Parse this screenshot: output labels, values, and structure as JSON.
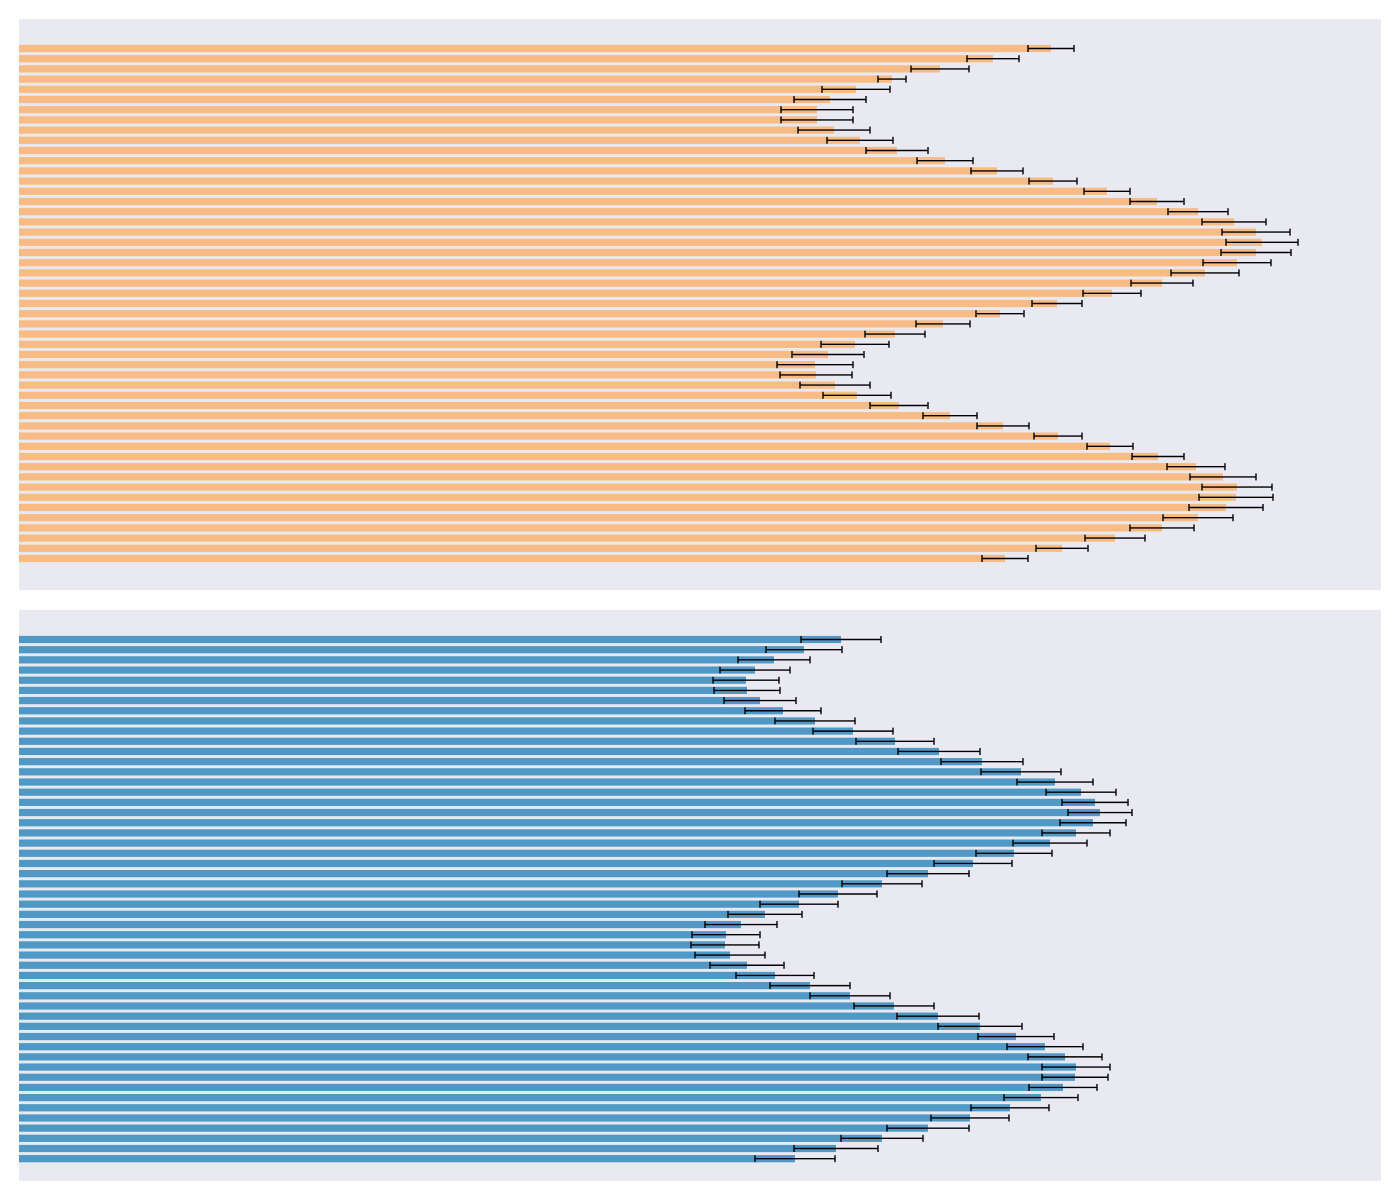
{
  "chart_data": [
    {
      "type": "bar",
      "orientation": "horizontal",
      "title": "",
      "xlabel": "",
      "ylabel": "",
      "axes_visible": false,
      "grid": false,
      "legend": "none",
      "background": "#e9e9f1",
      "bar_color": "#f7bb83",
      "xlim": [
        0,
        1400
      ],
      "values": [
        1051,
        993,
        940,
        892,
        856,
        830,
        817,
        817,
        834,
        860,
        897,
        945,
        997,
        1053,
        1107,
        1157,
        1198,
        1234,
        1256,
        1262,
        1256,
        1237,
        1205,
        1162,
        1112,
        1057,
        1000,
        943,
        895,
        855,
        828,
        815,
        816,
        835,
        857,
        899,
        950,
        1003,
        1058,
        1110,
        1158,
        1196,
        1223,
        1237,
        1236,
        1226,
        1198,
        1162,
        1115,
        1062,
        1005
      ],
      "errors": [
        23,
        26,
        29,
        14,
        34,
        36,
        36,
        36,
        36,
        33,
        31,
        28,
        26,
        24,
        23,
        27,
        30,
        32,
        34,
        36,
        35,
        34,
        34,
        31,
        29,
        25,
        24,
        27,
        30,
        34,
        36,
        38,
        36,
        35,
        34,
        29,
        27,
        26,
        24,
        23,
        26,
        29,
        33,
        35,
        37,
        37,
        35,
        32,
        30,
        26,
        23
      ]
    },
    {
      "type": "bar",
      "orientation": "horizontal",
      "title": "",
      "xlabel": "",
      "ylabel": "",
      "axes_visible": false,
      "grid": false,
      "legend": "none",
      "background": "#e9e9f1",
      "bar_color": "#5098c6",
      "xlim": [
        0,
        1400
      ],
      "values": [
        841,
        804,
        774,
        755,
        746,
        747,
        760,
        783,
        815,
        853,
        895,
        939,
        982,
        1021,
        1055,
        1081,
        1095,
        1100,
        1093,
        1076,
        1050,
        1014,
        973,
        928,
        882,
        838,
        799,
        765,
        741,
        726,
        725,
        730,
        747,
        775,
        810,
        850,
        894,
        938,
        980,
        1016,
        1045,
        1065,
        1076,
        1075,
        1063,
        1041,
        1010,
        970,
        928,
        882,
        836,
        795
      ],
      "errors": [
        40,
        38,
        36,
        35,
        33,
        33,
        36,
        38,
        40,
        40,
        39,
        41,
        41,
        40,
        38,
        35,
        33,
        32,
        33,
        34,
        37,
        38,
        39,
        41,
        40,
        39,
        39,
        37,
        36,
        34,
        34,
        35,
        37,
        39,
        40,
        40,
        40,
        41,
        42,
        38,
        38,
        37,
        34,
        33,
        34,
        37,
        39,
        39,
        41,
        41,
        42,
        40
      ]
    }
  ]
}
